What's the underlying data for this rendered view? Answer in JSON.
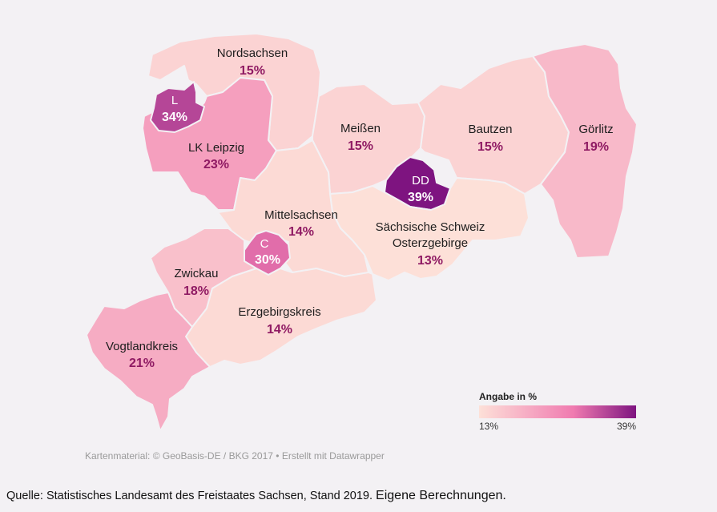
{
  "colors": {
    "background": "#f3f1f4",
    "scale_low": "#fde0d8",
    "scale_mid": "#f07bb0",
    "scale_high": "#7e1480"
  },
  "chart_data": {
    "type": "choropleth",
    "title": "",
    "legend": {
      "title": "Angabe in %",
      "min_label": "13%",
      "max_label": "39%",
      "min": 13,
      "max": 39,
      "placement": "bottom-right"
    },
    "regions": [
      {
        "id": "nordsachsen",
        "name": "Nordsachsen",
        "label": "15%",
        "value": 15
      },
      {
        "id": "leipzig",
        "name": "L",
        "label": "34%",
        "value": 34
      },
      {
        "id": "lk-leipzig",
        "name": "LK Leipzig",
        "label": "23%",
        "value": 23
      },
      {
        "id": "meissen",
        "name": "Meißen",
        "label": "15%",
        "value": 15
      },
      {
        "id": "bautzen",
        "name": "Bautzen",
        "label": "15%",
        "value": 15
      },
      {
        "id": "goerlitz",
        "name": "Görlitz",
        "label": "19%",
        "value": 19
      },
      {
        "id": "dresden",
        "name": "DD",
        "label": "39%",
        "value": 39
      },
      {
        "id": "mittelsachsen",
        "name": "Mittelsachsen",
        "label": "14%",
        "value": 14
      },
      {
        "id": "saechsische-schweiz",
        "name": "Sächsische Schweiz",
        "name2": "Osterzgebirge",
        "label": "13%",
        "value": 13
      },
      {
        "id": "chemnitz",
        "name": "C",
        "label": "30%",
        "value": 30
      },
      {
        "id": "zwickau",
        "name": "Zwickau",
        "label": "18%",
        "value": 18
      },
      {
        "id": "erzgebirgskreis",
        "name": "Erzgebirgskreis",
        "label": "14%",
        "value": 14
      },
      {
        "id": "vogtlandkreis",
        "name": "Vogtlandkreis",
        "label": "21%",
        "value": 21
      }
    ]
  },
  "credit": "Kartenmaterial: © GeoBasis-DE / BKG 2017 • Erstellt mit Datawrapper",
  "source": {
    "main": "Quelle: Statistisches Landesamt des Freistaates Sachsen, Stand 2019.",
    "extra": "Eigene Berechnungen."
  }
}
